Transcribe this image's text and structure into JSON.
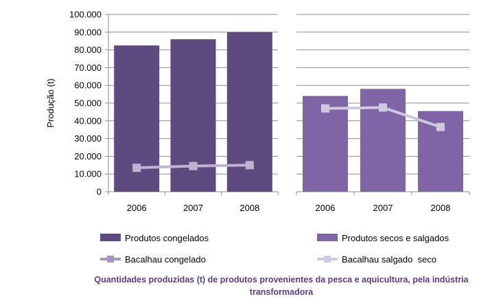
{
  "caption": {
    "line1": "Quantidades produzidas (t) de produtos provenientes da pesca e aquicultura, pela indústria",
    "line2": "transformadora"
  },
  "chart_data": {
    "type": "bar",
    "ylabel": "Produção (t)",
    "ylim": [
      0,
      100000
    ],
    "yticks": [
      "0",
      "10.000",
      "20.000",
      "30.000",
      "40.000",
      "50.000",
      "60.000",
      "70.000",
      "80.000",
      "90.000",
      "100.000"
    ],
    "grid": true,
    "panels": [
      {
        "categories": [
          "2006",
          "2007",
          "2008"
        ],
        "bar_series": {
          "name": "Produtos congelados",
          "values": [
            82500,
            86000,
            90000
          ],
          "color": "#5e4a7e"
        },
        "line_series": {
          "name": "Bacalhau congelado",
          "values": [
            13500,
            14500,
            15000
          ],
          "color": "#bfb2d3"
        }
      },
      {
        "categories": [
          "2006",
          "2007",
          "2008"
        ],
        "bar_series": {
          "name": "Produtos secos e salgados",
          "values": [
            54000,
            58000,
            45500
          ],
          "color": "#7f64a6"
        },
        "line_series": {
          "name": "Bacalhau salgado  seco",
          "values": [
            47000,
            47500,
            36500
          ],
          "color": "#d0c8e2"
        }
      }
    ]
  },
  "legend": {
    "items": [
      {
        "label": "Produtos congelados",
        "kind": "bar",
        "color": "#5e4a7e"
      },
      {
        "label": "Produtos secos e salgados",
        "kind": "bar",
        "color": "#7f64a6"
      },
      {
        "label": "Bacalhau congelado",
        "kind": "line",
        "color": "#a596c0"
      },
      {
        "label": "Bacalhau salgado  seco",
        "kind": "line",
        "color": "#d0c8e2"
      }
    ]
  }
}
